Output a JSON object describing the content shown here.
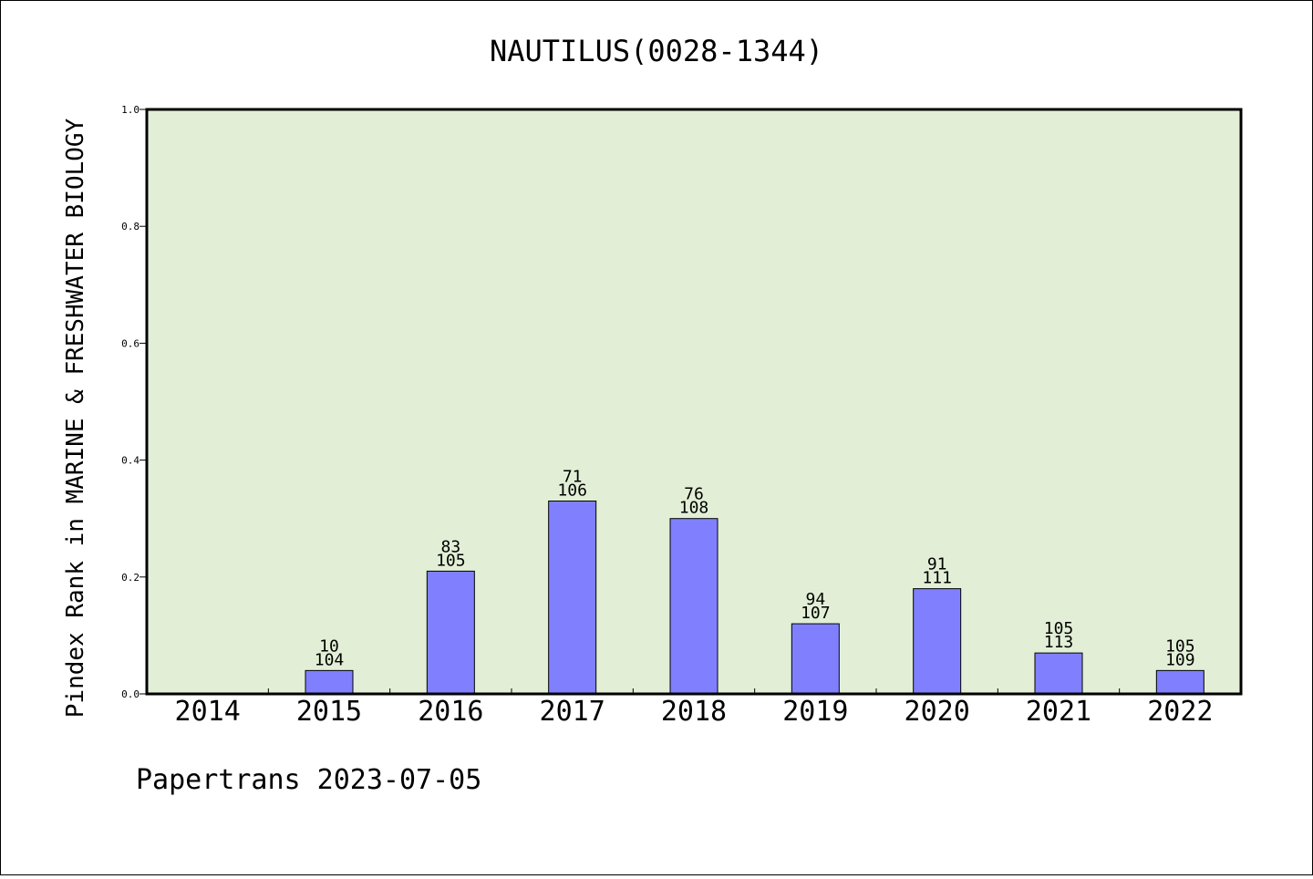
{
  "chart_data": {
    "type": "bar",
    "title": "NAUTILUS(0028-1344)",
    "xlabel": "",
    "ylabel": "Pindex Rank in MARINE & FRESHWATER BIOLOGY",
    "categories": [
      "2014",
      "2015",
      "2016",
      "2017",
      "2018",
      "2019",
      "2020",
      "2021",
      "2022"
    ],
    "values": [
      0,
      0.04,
      0.21,
      0.33,
      0.3,
      0.12,
      0.18,
      0.07,
      0.04
    ],
    "rank_labels": [
      "",
      "10",
      "83",
      "71",
      "76",
      "94",
      "91",
      "105",
      "105"
    ],
    "total_labels": [
      "",
      "104",
      "105",
      "106",
      "108",
      "107",
      "111",
      "113",
      "109"
    ],
    "ylim": [
      0,
      1.0
    ],
    "yticks": [
      "0.0",
      "0.2",
      "0.4",
      "0.6",
      "0.8",
      "1.0"
    ],
    "grid": false,
    "colors": {
      "plot_background": "#e2efd6",
      "bar_fill": "#8080ff",
      "bar_stroke": "#000000"
    }
  },
  "footer": {
    "text": "Papertrans 2023-07-05"
  }
}
